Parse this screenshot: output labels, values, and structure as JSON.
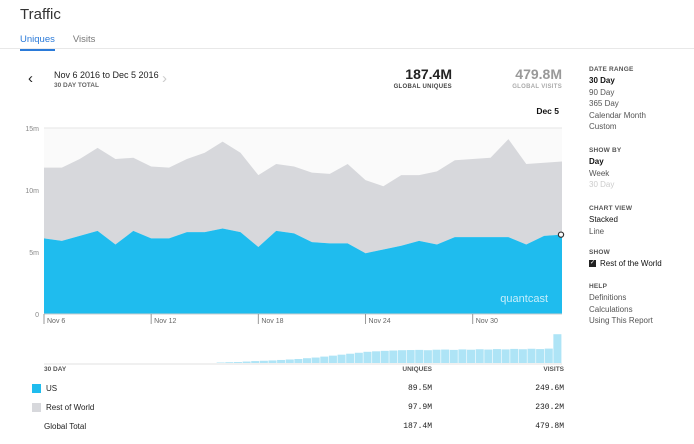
{
  "page": {
    "title": "Traffic"
  },
  "tabs": [
    {
      "label": "Uniques"
    },
    {
      "label": "Visits"
    }
  ],
  "nav": {
    "prev": "‹",
    "next": "›",
    "range": "Nov 6 2016 to Dec 5 2016",
    "range_sub": "30 DAY TOTAL"
  },
  "stats": {
    "uniques": {
      "value": "187.4M",
      "label": "GLOBAL UNIQUES"
    },
    "visits": {
      "value": "479.8M",
      "label": "GLOBAL VISITS"
    }
  },
  "watermark": "quantcast",
  "sidebar": {
    "date_range": {
      "heading": "DATE RANGE",
      "items": [
        "30 Day",
        "90 Day",
        "365 Day",
        "Calendar Month",
        "Custom"
      ]
    },
    "show_by": {
      "heading": "SHOW BY",
      "items": [
        "Day",
        "Week",
        "30 Day"
      ]
    },
    "chart_view": {
      "heading": "CHART VIEW",
      "items": [
        "Stacked",
        "Line"
      ]
    },
    "show": {
      "heading": "SHOW",
      "checkbox_label": "Rest of the World"
    },
    "help": {
      "heading": "HELP",
      "items": [
        "Definitions",
        "Calculations",
        "Using This Report"
      ]
    }
  },
  "legend": {
    "headers": {
      "range": "30 DAY",
      "uniques": "UNIQUES",
      "visits": "VISITS"
    },
    "rows": [
      {
        "name": "US",
        "uniques": "89.5M",
        "visits": "249.6M",
        "color": "#1fbcee"
      },
      {
        "name": "Rest of World",
        "uniques": "97.9M",
        "visits": "230.2M",
        "color": "#d7d8dc"
      },
      {
        "name": "Global Total",
        "uniques": "187.4M",
        "visits": "479.8M"
      }
    ]
  },
  "chart_data": {
    "type": "area",
    "stacked": true,
    "highlight_label": "Dec 5",
    "x": [
      "Nov 6",
      "Nov 7",
      "Nov 8",
      "Nov 9",
      "Nov 10",
      "Nov 11",
      "Nov 12",
      "Nov 13",
      "Nov 14",
      "Nov 15",
      "Nov 16",
      "Nov 17",
      "Nov 18",
      "Nov 19",
      "Nov 20",
      "Nov 21",
      "Nov 22",
      "Nov 23",
      "Nov 24",
      "Nov 25",
      "Nov 26",
      "Nov 27",
      "Nov 28",
      "Nov 29",
      "Nov 30",
      "Dec 1",
      "Dec 2",
      "Dec 3",
      "Dec 4",
      "Dec 5"
    ],
    "x_ticks": [
      "Nov 6",
      "Nov 12",
      "Nov 18",
      "Nov 24",
      "Nov 30"
    ],
    "y_ticks": [
      "0",
      "5m",
      "10m",
      "15m"
    ],
    "ylim": [
      0,
      15
    ],
    "series": [
      {
        "name": "US",
        "color": "#1fbcee",
        "values": [
          6.1,
          5.9,
          6.3,
          6.7,
          5.6,
          6.7,
          6.1,
          6.1,
          6.6,
          6.6,
          6.9,
          6.6,
          5.4,
          6.7,
          6.5,
          5.8,
          5.7,
          5.7,
          4.9,
          5.2,
          5.5,
          5.9,
          5.6,
          6.2,
          6.2,
          6.2,
          6.2,
          5.6,
          6.3,
          6.4
        ]
      },
      {
        "name": "Rest of World",
        "color": "#d7d8dc",
        "values": [
          5.7,
          5.9,
          6.2,
          6.7,
          6.9,
          5.9,
          5.8,
          5.7,
          5.9,
          6.4,
          7.0,
          6.4,
          5.8,
          5.4,
          5.4,
          5.6,
          5.6,
          6.4,
          5.9,
          5.1,
          5.7,
          5.3,
          5.9,
          6.2,
          6.3,
          6.4,
          7.9,
          6.5,
          5.9,
          5.9
        ]
      }
    ]
  }
}
